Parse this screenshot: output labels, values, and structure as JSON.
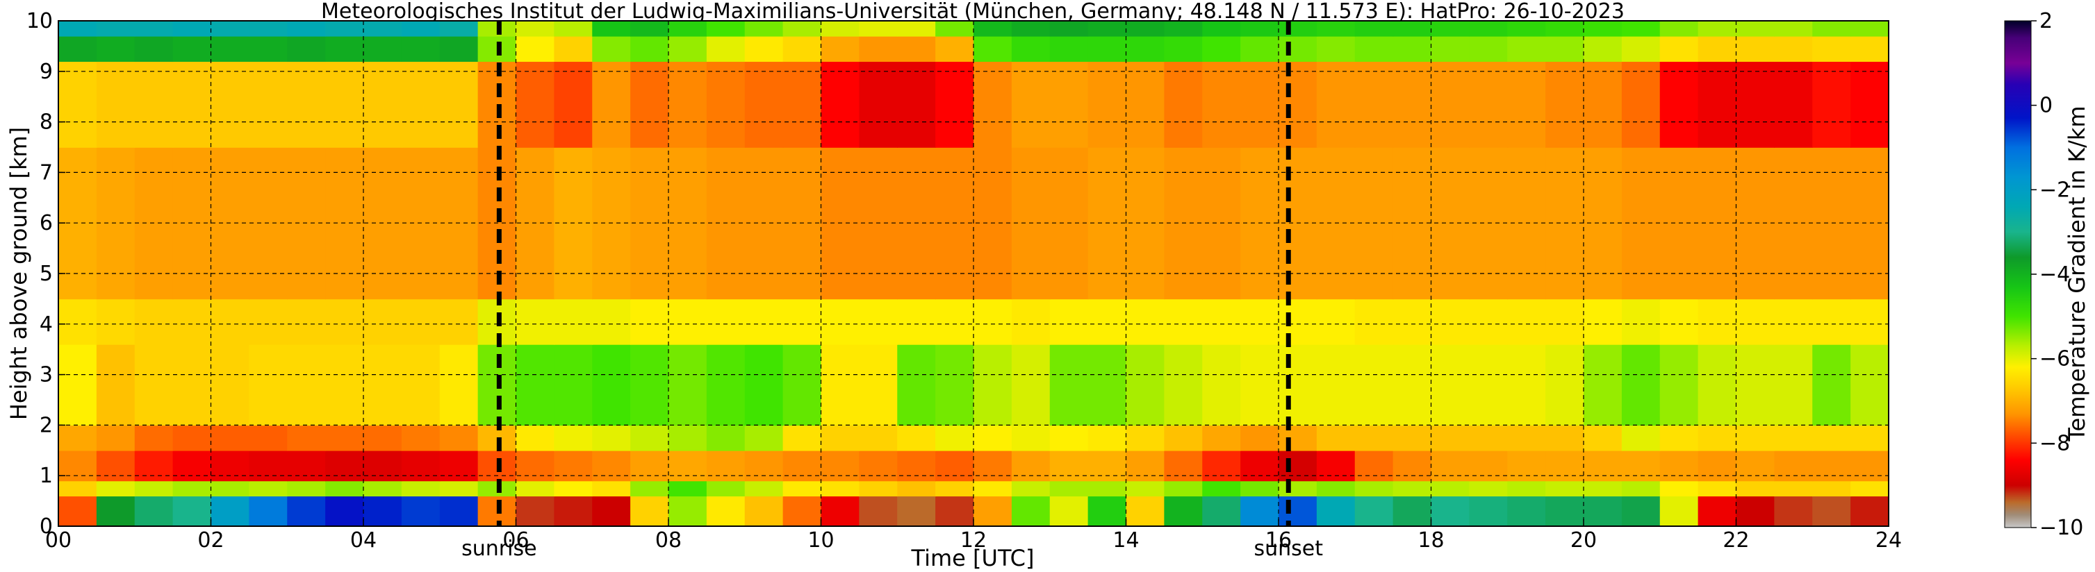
{
  "chart_data": {
    "type": "heatmap",
    "title": "Meteorologisches Institut der Ludwig-Maximilians-Universität (München, Germany; 48.148 N / 11.573 E):    HatPro: 26-10-2023",
    "xlabel": "Time [UTC]",
    "ylabel": "Height above ground [km]",
    "xlim": [
      0,
      24
    ],
    "ylim": [
      0,
      10
    ],
    "x_ticks": [
      "00",
      "02",
      "04",
      "06",
      "08",
      "10",
      "12",
      "14",
      "16",
      "18",
      "20",
      "22",
      "24"
    ],
    "y_ticks": [
      "0",
      "1",
      "2",
      "3",
      "4",
      "5",
      "6",
      "7",
      "8",
      "9",
      "10"
    ],
    "grid": true,
    "colorbar": {
      "label": "Temperature Gradient in K/km",
      "range": [
        -10,
        2
      ],
      "ticks": [
        "2",
        "0",
        "−2",
        "−4",
        "−6",
        "−8",
        "−10"
      ],
      "colors": [
        {
          "v": -10,
          "c": "#c8c8c8"
        },
        {
          "v": -9.7,
          "c": "#a08c78"
        },
        {
          "v": -9.4,
          "c": "#bb6a2a"
        },
        {
          "v": -9.0,
          "c": "#cc0000"
        },
        {
          "v": -8.4,
          "c": "#ff0000"
        },
        {
          "v": -7.8,
          "c": "#ff5000"
        },
        {
          "v": -7.3,
          "c": "#ff9600"
        },
        {
          "v": -6.6,
          "c": "#ffd200"
        },
        {
          "v": -6.2,
          "c": "#fff000"
        },
        {
          "v": -5.7,
          "c": "#b9ef00"
        },
        {
          "v": -5.0,
          "c": "#40e400"
        },
        {
          "v": -4.3,
          "c": "#16c516"
        },
        {
          "v": -3.6,
          "c": "#0e9a2a"
        },
        {
          "v": -3.0,
          "c": "#19b48c"
        },
        {
          "v": -2.4,
          "c": "#00a8b4"
        },
        {
          "v": -1.7,
          "c": "#0096d2"
        },
        {
          "v": -1.0,
          "c": "#0070e0"
        },
        {
          "v": -0.3,
          "c": "#0014c8"
        },
        {
          "v": 0.5,
          "c": "#2800b4"
        },
        {
          "v": 1.0,
          "c": "#780096"
        },
        {
          "v": 1.6,
          "c": "#460078"
        },
        {
          "v": 2.0,
          "c": "#000028"
        }
      ]
    },
    "annotations": [
      {
        "label": "sunrise",
        "x": 5.78
      },
      {
        "label": "sunset",
        "x": 16.13
      }
    ],
    "layers": [
      {
        "h0": 0.0,
        "h1": 0.6,
        "values": [
          -7.8,
          -3.6,
          -3.2,
          -3.0,
          -2.0,
          -1.2,
          -0.6,
          -0.2,
          -0.4,
          -0.6,
          -0.5,
          -7.5,
          -9.2,
          -9.1,
          -9.0,
          -6.6,
          -5.5,
          -6.3,
          -6.8,
          -7.6,
          -8.6,
          -9.3,
          -9.4,
          -9.2,
          -7.2,
          -5.2,
          -6.0,
          -4.5,
          -6.6,
          -4.0,
          -3.2,
          -1.5,
          -0.8,
          -2.4,
          -3.0,
          -3.3,
          -3.0,
          -3.1,
          -3.2,
          -3.3,
          -3.3,
          -3.4,
          -6.0,
          -8.6,
          -9.0,
          -9.2,
          -9.3,
          -9.1
        ]
      },
      {
        "h0": 0.6,
        "h1": 0.9,
        "values": [
          -6.6,
          -6.0,
          -5.8,
          -5.6,
          -5.6,
          -5.7,
          -5.6,
          -5.4,
          -5.6,
          -5.8,
          -5.9,
          -5.5,
          -6.0,
          -6.2,
          -6.4,
          -5.5,
          -5.0,
          -5.5,
          -5.8,
          -6.3,
          -6.4,
          -6.6,
          -6.8,
          -6.6,
          -6.3,
          -5.8,
          -5.6,
          -5.6,
          -5.8,
          -5.5,
          -5.0,
          -5.3,
          -5.6,
          -5.4,
          -5.6,
          -5.7,
          -5.7,
          -5.8,
          -5.7,
          -5.8,
          -5.8,
          -5.7,
          -6.2,
          -6.4,
          -6.6,
          -6.6,
          -6.6,
          -6.4
        ]
      },
      {
        "h0": 0.9,
        "h1": 1.5,
        "values": [
          -7.4,
          -7.8,
          -8.2,
          -8.5,
          -8.6,
          -8.7,
          -8.7,
          -8.8,
          -8.8,
          -8.7,
          -8.6,
          -7.8,
          -7.6,
          -7.5,
          -7.4,
          -7.2,
          -7.1,
          -7.2,
          -7.3,
          -7.4,
          -7.4,
          -7.5,
          -7.6,
          -7.7,
          -7.5,
          -7.2,
          -7.0,
          -7.0,
          -7.2,
          -7.6,
          -8.1,
          -8.6,
          -8.9,
          -8.5,
          -7.6,
          -7.4,
          -7.2,
          -7.2,
          -7.1,
          -7.1,
          -7.1,
          -7.1,
          -7.2,
          -7.3,
          -7.2,
          -7.3,
          -7.3,
          -7.3
        ]
      },
      {
        "h0": 1.5,
        "h1": 2.0,
        "values": [
          -7.1,
          -7.3,
          -7.6,
          -7.7,
          -7.7,
          -7.7,
          -7.6,
          -7.6,
          -7.6,
          -7.5,
          -7.4,
          -6.9,
          -6.3,
          -6.1,
          -6.0,
          -5.8,
          -5.6,
          -5.4,
          -5.6,
          -6.4,
          -6.6,
          -6.6,
          -6.4,
          -6.1,
          -6.2,
          -6.1,
          -6.2,
          -6.3,
          -6.5,
          -6.8,
          -7.1,
          -7.3,
          -7.1,
          -6.8,
          -6.8,
          -6.8,
          -6.8,
          -6.8,
          -6.8,
          -6.8,
          -6.6,
          -6.0,
          -6.4,
          -6.5,
          -6.5,
          -6.5,
          -6.5,
          -6.5
        ]
      },
      {
        "h0": 2.0,
        "h1": 3.6,
        "values": [
          -6.2,
          -6.8,
          -6.6,
          -6.6,
          -6.6,
          -6.5,
          -6.5,
          -6.5,
          -6.5,
          -6.5,
          -6.3,
          -5.3,
          -5.1,
          -5.1,
          -5.0,
          -5.1,
          -5.3,
          -5.1,
          -5.0,
          -5.2,
          -6.3,
          -6.3,
          -5.2,
          -5.3,
          -5.7,
          -5.9,
          -5.3,
          -5.3,
          -5.6,
          -5.8,
          -6.0,
          -6.1,
          -6.1,
          -6.1,
          -6.1,
          -6.1,
          -6.1,
          -6.1,
          -6.1,
          -6.0,
          -5.5,
          -5.2,
          -5.5,
          -5.8,
          -5.9,
          -5.9,
          -5.3,
          -5.7
        ]
      },
      {
        "h0": 3.6,
        "h1": 4.5,
        "values": [
          -6.4,
          -6.5,
          -6.6,
          -6.6,
          -6.6,
          -6.6,
          -6.6,
          -6.6,
          -6.6,
          -6.6,
          -6.6,
          -6.0,
          -6.1,
          -6.1,
          -6.1,
          -6.2,
          -6.2,
          -6.2,
          -6.2,
          -6.2,
          -6.2,
          -6.2,
          -6.2,
          -6.2,
          -6.2,
          -6.3,
          -6.2,
          -6.2,
          -6.2,
          -6.2,
          -6.2,
          -6.2,
          -6.2,
          -6.2,
          -6.3,
          -6.3,
          -6.3,
          -6.3,
          -6.3,
          -6.3,
          -6.2,
          -6.1,
          -6.2,
          -6.3,
          -6.3,
          -6.3,
          -6.3,
          -6.3
        ]
      },
      {
        "h0": 4.5,
        "h1": 7.5,
        "values": [
          -7.0,
          -7.1,
          -7.2,
          -7.2,
          -7.2,
          -7.2,
          -7.2,
          -7.2,
          -7.2,
          -7.2,
          -7.2,
          -7.4,
          -7.2,
          -7.0,
          -7.1,
          -7.2,
          -7.2,
          -7.3,
          -7.3,
          -7.3,
          -7.4,
          -7.4,
          -7.4,
          -7.4,
          -7.4,
          -7.3,
          -7.3,
          -7.2,
          -7.2,
          -7.3,
          -7.3,
          -7.2,
          -7.2,
          -7.2,
          -7.2,
          -7.2,
          -7.2,
          -7.2,
          -7.2,
          -7.2,
          -7.2,
          -7.3,
          -7.3,
          -7.3,
          -7.3,
          -7.3,
          -7.3,
          -7.3
        ]
      },
      {
        "h0": 7.5,
        "h1": 9.2,
        "values": [
          -6.6,
          -6.7,
          -6.7,
          -6.7,
          -6.7,
          -6.7,
          -6.7,
          -6.7,
          -6.7,
          -6.7,
          -6.7,
          -7.4,
          -7.7,
          -7.9,
          -7.3,
          -7.6,
          -7.4,
          -7.5,
          -7.6,
          -7.6,
          -8.4,
          -8.7,
          -8.7,
          -8.4,
          -7.4,
          -7.2,
          -7.2,
          -7.3,
          -7.3,
          -7.5,
          -7.4,
          -7.4,
          -7.4,
          -7.3,
          -7.3,
          -7.3,
          -7.3,
          -7.3,
          -7.3,
          -7.4,
          -7.4,
          -7.6,
          -8.4,
          -8.6,
          -8.6,
          -8.6,
          -8.3,
          -8.4
        ]
      },
      {
        "h0": 9.2,
        "h1": 9.7,
        "values": [
          -3.8,
          -3.9,
          -3.8,
          -3.9,
          -3.9,
          -3.9,
          -3.8,
          -3.9,
          -3.9,
          -3.9,
          -3.8,
          -5.4,
          -6.2,
          -6.6,
          -5.4,
          -5.2,
          -5.5,
          -6.0,
          -6.3,
          -6.5,
          -7.1,
          -7.3,
          -7.3,
          -7.0,
          -5.1,
          -4.8,
          -4.7,
          -4.7,
          -4.7,
          -4.8,
          -5.0,
          -5.2,
          -5.3,
          -5.4,
          -5.3,
          -5.3,
          -5.4,
          -5.4,
          -5.5,
          -5.5,
          -5.7,
          -5.9,
          -6.4,
          -6.6,
          -6.6,
          -6.6,
          -6.5,
          -6.5
        ]
      },
      {
        "h0": 9.7,
        "h1": 10.0,
        "values": [
          -2.4,
          -2.5,
          -2.5,
          -2.4,
          -2.5,
          -2.5,
          -2.4,
          -2.5,
          -2.5,
          -2.4,
          -2.6,
          -5.6,
          -5.9,
          -5.7,
          -4.3,
          -4.1,
          -4.6,
          -5.0,
          -5.3,
          -5.6,
          -5.9,
          -6.0,
          -6.0,
          -5.3,
          -4.1,
          -3.9,
          -3.8,
          -3.9,
          -3.9,
          -4.0,
          -4.3,
          -4.4,
          -4.5,
          -4.6,
          -4.5,
          -4.5,
          -4.6,
          -4.6,
          -4.7,
          -4.8,
          -4.9,
          -5.0,
          -5.4,
          -5.6,
          -5.6,
          -5.6,
          -5.4,
          -5.4
        ]
      }
    ]
  }
}
